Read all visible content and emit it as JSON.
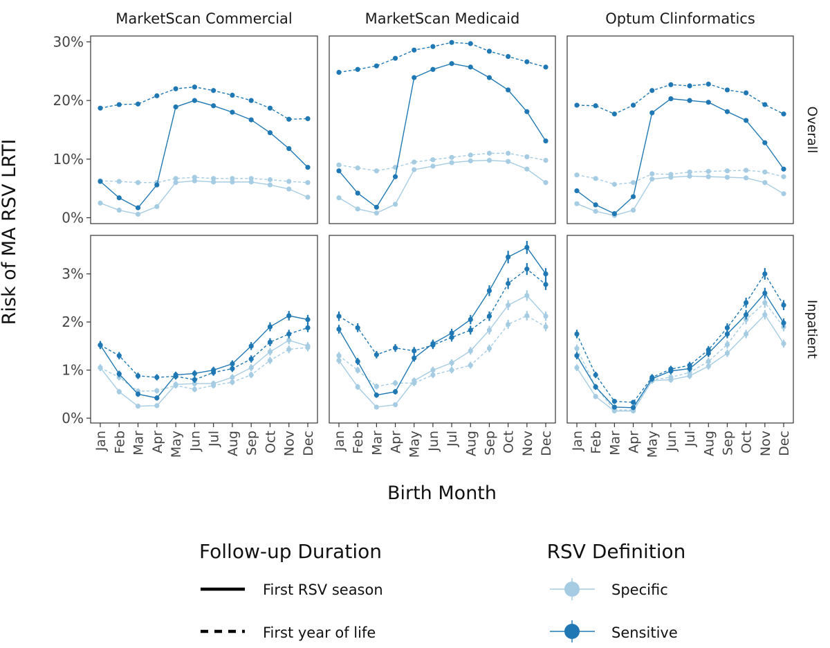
{
  "chart_data": {
    "type": "line",
    "xlabel": "Birth Month",
    "ylabel": "Risk of MA RSV LRTI",
    "months": [
      "Jan",
      "Feb",
      "Mar",
      "Apr",
      "May",
      "Jun",
      "Jul",
      "Aug",
      "Sep",
      "Oct",
      "Nov",
      "Dec"
    ],
    "facet_columns": [
      "MarketScan Commercial",
      "MarketScan Medicaid",
      "Optum Clinformatics"
    ],
    "facet_rows": [
      {
        "label": "Overall",
        "ylim": [
          -0.01,
          0.31
        ],
        "yticks": [
          0,
          0.1,
          0.2,
          0.3
        ],
        "ytick_labels": [
          "0%",
          "10%",
          "20%",
          "30%"
        ]
      },
      {
        "label": "Inpatient",
        "ylim": [
          -0.001,
          0.038
        ],
        "yticks": [
          0,
          0.01,
          0.02,
          0.03
        ],
        "ytick_labels": [
          "0%",
          "1%",
          "2%",
          "3%"
        ]
      }
    ],
    "colors": {
      "Specific": "#a6cce3",
      "Sensitive": "#1f78b4"
    },
    "legend": {
      "linetype_title": "Follow-up Duration",
      "linetype_entries": [
        "First RSV season",
        "First year of life"
      ],
      "color_title": "RSV Definition",
      "color_entries": [
        "Specific",
        "Sensitive"
      ],
      "position": "bottom"
    },
    "grid": true,
    "panels": [
      {
        "column": "MarketScan Commercial",
        "row": "Overall",
        "series": [
          {
            "definition": "Sensitive",
            "followup": "First year of life",
            "values": [
              0.187,
              0.193,
              0.194,
              0.208,
              0.22,
              0.223,
              0.217,
              0.209,
              0.2,
              0.187,
              0.168,
              0.169
            ]
          },
          {
            "definition": "Sensitive",
            "followup": "First RSV season",
            "values": [
              0.062,
              0.034,
              0.017,
              0.056,
              0.189,
              0.2,
              0.191,
              0.18,
              0.167,
              0.145,
              0.118,
              0.086
            ]
          },
          {
            "definition": "Specific",
            "followup": "First year of life",
            "values": [
              0.063,
              0.062,
              0.06,
              0.06,
              0.067,
              0.069,
              0.067,
              0.067,
              0.067,
              0.065,
              0.062,
              0.06
            ]
          },
          {
            "definition": "Specific",
            "followup": "First RSV season",
            "values": [
              0.025,
              0.013,
              0.006,
              0.019,
              0.06,
              0.063,
              0.061,
              0.061,
              0.061,
              0.056,
              0.049,
              0.035
            ]
          }
        ]
      },
      {
        "column": "MarketScan Medicaid",
        "row": "Overall",
        "series": [
          {
            "definition": "Sensitive",
            "followup": "First year of life",
            "values": [
              0.248,
              0.253,
              0.259,
              0.272,
              0.286,
              0.292,
              0.299,
              0.297,
              0.284,
              0.275,
              0.266,
              0.257
            ]
          },
          {
            "definition": "Sensitive",
            "followup": "First RSV season",
            "values": [
              0.08,
              0.042,
              0.018,
              0.07,
              0.239,
              0.253,
              0.263,
              0.257,
              0.239,
              0.218,
              0.181,
              0.131
            ]
          },
          {
            "definition": "Specific",
            "followup": "First year of life",
            "values": [
              0.09,
              0.085,
              0.08,
              0.086,
              0.095,
              0.099,
              0.103,
              0.107,
              0.11,
              0.11,
              0.104,
              0.098
            ]
          },
          {
            "definition": "Specific",
            "followup": "First RSV season",
            "values": [
              0.034,
              0.015,
              0.008,
              0.023,
              0.082,
              0.088,
              0.094,
              0.097,
              0.098,
              0.096,
              0.083,
              0.06
            ]
          }
        ]
      },
      {
        "column": "Optum Clinformatics",
        "row": "Overall",
        "series": [
          {
            "definition": "Sensitive",
            "followup": "First year of life",
            "values": [
              0.192,
              0.191,
              0.177,
              0.192,
              0.217,
              0.227,
              0.225,
              0.228,
              0.218,
              0.213,
              0.193,
              0.177
            ]
          },
          {
            "definition": "Sensitive",
            "followup": "First RSV season",
            "values": [
              0.046,
              0.022,
              0.007,
              0.036,
              0.179,
              0.203,
              0.2,
              0.197,
              0.181,
              0.166,
              0.128,
              0.083
            ]
          },
          {
            "definition": "Specific",
            "followup": "First year of life",
            "values": [
              0.073,
              0.067,
              0.057,
              0.06,
              0.075,
              0.074,
              0.078,
              0.079,
              0.08,
              0.081,
              0.078,
              0.07
            ]
          },
          {
            "definition": "Specific",
            "followup": "First RSV season",
            "values": [
              0.024,
              0.011,
              0.004,
              0.013,
              0.066,
              0.069,
              0.071,
              0.07,
              0.069,
              0.068,
              0.06,
              0.041
            ]
          }
        ]
      },
      {
        "column": "MarketScan Commercial",
        "row": "Inpatient",
        "series": [
          {
            "definition": "Sensitive",
            "followup": "First year of life",
            "values": [
              0.0152,
              0.013,
              0.0088,
              0.0085,
              0.0087,
              0.008,
              0.0095,
              0.0103,
              0.0123,
              0.0158,
              0.0175,
              0.0188
            ]
          },
          {
            "definition": "Sensitive",
            "followup": "First RSV season",
            "values": [
              0.0152,
              0.0092,
              0.005,
              0.0042,
              0.009,
              0.0093,
              0.01,
              0.0113,
              0.015,
              0.019,
              0.0213,
              0.0205
            ]
          },
          {
            "definition": "Specific",
            "followup": "First year of life",
            "values": [
              0.0105,
              0.0085,
              0.0056,
              0.0057,
              0.0068,
              0.006,
              0.0068,
              0.0075,
              0.009,
              0.012,
              0.0143,
              0.0147
            ]
          },
          {
            "definition": "Specific",
            "followup": "First RSV season",
            "values": [
              0.0105,
              0.0055,
              0.0025,
              0.0026,
              0.007,
              0.0072,
              0.0072,
              0.0085,
              0.0105,
              0.0138,
              0.0162,
              0.015
            ]
          }
        ]
      },
      {
        "column": "MarketScan Medicaid",
        "row": "Inpatient",
        "series": [
          {
            "definition": "Sensitive",
            "followup": "First year of life",
            "values": [
              0.0212,
              0.0188,
              0.0132,
              0.0146,
              0.014,
              0.0152,
              0.0168,
              0.0183,
              0.0212,
              0.028,
              0.031,
              0.0278
            ]
          },
          {
            "definition": "Sensitive",
            "followup": "First RSV season",
            "values": [
              0.0185,
              0.0118,
              0.0048,
              0.0055,
              0.0125,
              0.0155,
              0.0177,
              0.0205,
              0.0265,
              0.0335,
              0.0355,
              0.03
            ]
          },
          {
            "definition": "Specific",
            "followup": "First year of life",
            "values": [
              0.013,
              0.01,
              0.0066,
              0.0073,
              0.0073,
              0.009,
              0.01,
              0.011,
              0.0145,
              0.0195,
              0.0213,
              0.019
            ]
          },
          {
            "definition": "Specific",
            "followup": "First RSV season",
            "values": [
              0.012,
              0.0065,
              0.0023,
              0.0028,
              0.0078,
              0.01,
              0.0115,
              0.014,
              0.0183,
              0.0235,
              0.0255,
              0.0212
            ]
          }
        ]
      },
      {
        "column": "Optum Clinformatics",
        "row": "Inpatient",
        "series": [
          {
            "definition": "Sensitive",
            "followup": "First year of life",
            "values": [
              0.0175,
              0.009,
              0.0035,
              0.0033,
              0.0085,
              0.0102,
              0.011,
              0.0142,
              0.0188,
              0.024,
              0.03,
              0.0235
            ]
          },
          {
            "definition": "Sensitive",
            "followup": "First RSV season",
            "values": [
              0.013,
              0.0065,
              0.0023,
              0.0022,
              0.0082,
              0.0098,
              0.0103,
              0.0135,
              0.0175,
              0.0215,
              0.026,
              0.0198
            ]
          },
          {
            "definition": "Specific",
            "followup": "First year of life",
            "values": [
              0.0145,
              0.0065,
              0.0017,
              0.0017,
              0.008,
              0.0085,
              0.0095,
              0.0118,
              0.0153,
              0.0205,
              0.024,
              0.019
            ]
          },
          {
            "definition": "Specific",
            "followup": "First RSV season",
            "values": [
              0.0105,
              0.0045,
              0.0015,
              0.0015,
              0.0078,
              0.008,
              0.0088,
              0.0108,
              0.0135,
              0.0175,
              0.0215,
              0.0155
            ]
          }
        ]
      }
    ]
  }
}
